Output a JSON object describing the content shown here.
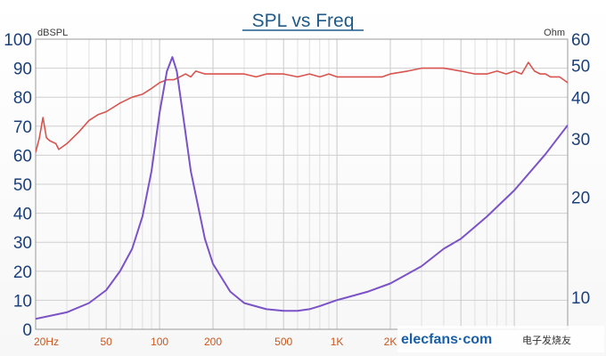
{
  "chart_data": {
    "type": "line",
    "title": "SPL vs Freq",
    "ylabel_left": "dBSPL",
    "ylabel_right": "Ohm",
    "x_scale": "log",
    "xlim": [
      20,
      20000
    ],
    "ylim_left": [
      0,
      100
    ],
    "ylim_right_log": [
      8,
      60
    ],
    "grid": true,
    "x_ticks": [
      {
        "value": 20,
        "label": "20Hz"
      },
      {
        "value": 50,
        "label": "50"
      },
      {
        "value": 100,
        "label": "100"
      },
      {
        "value": 200,
        "label": "200"
      },
      {
        "value": 500,
        "label": "500"
      },
      {
        "value": 1000,
        "label": "1K"
      },
      {
        "value": 2000,
        "label": "2K"
      }
    ],
    "y_ticks_left": [
      0,
      10,
      20,
      30,
      40,
      50,
      60,
      70,
      80,
      90,
      100
    ],
    "y_ticks_right": [
      10,
      20,
      30,
      40,
      50,
      60
    ],
    "series": [
      {
        "axis": "left",
        "color": "#d9534f",
        "points": [
          [
            20,
            61
          ],
          [
            21,
            66
          ],
          [
            22,
            73
          ],
          [
            23,
            66
          ],
          [
            24,
            65
          ],
          [
            26,
            64
          ],
          [
            27,
            62
          ],
          [
            30,
            64
          ],
          [
            35,
            68
          ],
          [
            40,
            72
          ],
          [
            45,
            74
          ],
          [
            50,
            75
          ],
          [
            60,
            78
          ],
          [
            70,
            80
          ],
          [
            80,
            81
          ],
          [
            90,
            83
          ],
          [
            100,
            85
          ],
          [
            110,
            86
          ],
          [
            120,
            86
          ],
          [
            130,
            87
          ],
          [
            140,
            88
          ],
          [
            150,
            87
          ],
          [
            160,
            89
          ],
          [
            180,
            88
          ],
          [
            200,
            88
          ],
          [
            250,
            88
          ],
          [
            300,
            88
          ],
          [
            350,
            87
          ],
          [
            400,
            88
          ],
          [
            500,
            88
          ],
          [
            600,
            87
          ],
          [
            700,
            88
          ],
          [
            800,
            87
          ],
          [
            900,
            88
          ],
          [
            1000,
            87
          ],
          [
            1200,
            87
          ],
          [
            1500,
            87
          ],
          [
            1800,
            87
          ],
          [
            2000,
            88
          ],
          [
            2500,
            89
          ],
          [
            3000,
            90
          ],
          [
            3500,
            90
          ],
          [
            4000,
            90
          ],
          [
            5000,
            89
          ],
          [
            6000,
            88
          ],
          [
            7000,
            88
          ],
          [
            8000,
            89
          ],
          [
            9000,
            88
          ],
          [
            10000,
            89
          ],
          [
            11000,
            88
          ],
          [
            12000,
            92
          ],
          [
            13000,
            89
          ],
          [
            14000,
            88
          ],
          [
            15000,
            88
          ],
          [
            16000,
            87
          ],
          [
            18000,
            87
          ],
          [
            20000,
            85
          ]
        ]
      },
      {
        "axis": "right",
        "color": "#7b52c7",
        "points": [
          [
            20,
            8.6
          ],
          [
            30,
            9.0
          ],
          [
            40,
            9.6
          ],
          [
            50,
            10.5
          ],
          [
            60,
            12.0
          ],
          [
            70,
            14.0
          ],
          [
            80,
            17.5
          ],
          [
            90,
            24
          ],
          [
            100,
            36
          ],
          [
            110,
            48
          ],
          [
            118,
            53
          ],
          [
            125,
            48
          ],
          [
            135,
            36
          ],
          [
            150,
            24
          ],
          [
            180,
            15
          ],
          [
            200,
            12.6
          ],
          [
            250,
            10.4
          ],
          [
            300,
            9.6
          ],
          [
            400,
            9.2
          ],
          [
            500,
            9.1
          ],
          [
            600,
            9.1
          ],
          [
            700,
            9.2
          ],
          [
            800,
            9.4
          ],
          [
            1000,
            9.8
          ],
          [
            1500,
            10.4
          ],
          [
            2000,
            11.0
          ],
          [
            3000,
            12.4
          ],
          [
            4000,
            14.0
          ],
          [
            5000,
            15.0
          ],
          [
            7000,
            17.5
          ],
          [
            10000,
            21
          ],
          [
            15000,
            27
          ],
          [
            20000,
            33
          ]
        ]
      }
    ]
  },
  "watermark": {
    "site": "elecfans·com",
    "cn": "电子发烧友"
  }
}
